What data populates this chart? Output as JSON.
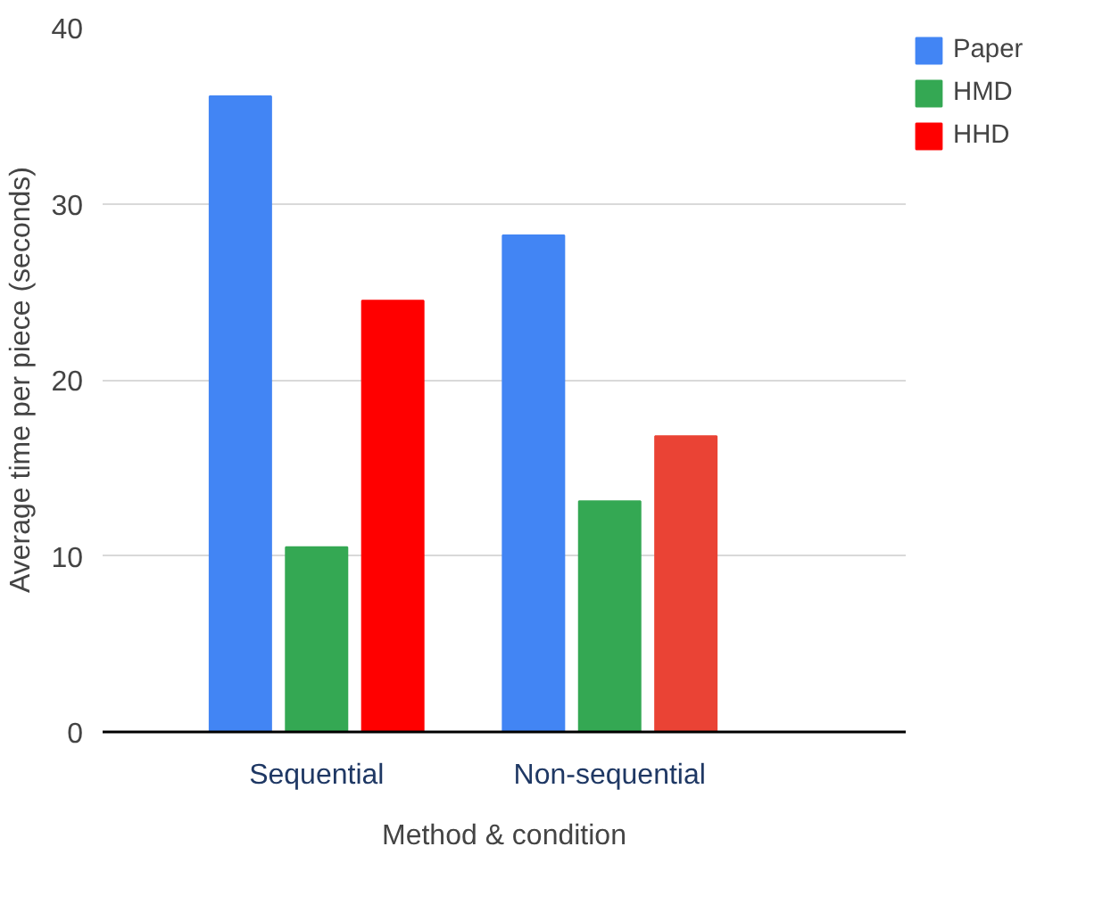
{
  "chart_data": {
    "type": "bar",
    "categories": [
      "Sequential",
      "Non-sequential"
    ],
    "series": [
      {
        "name": "Paper",
        "color": "#4285f4",
        "values": [
          36.1,
          28.2
        ]
      },
      {
        "name": "HMD",
        "color": "#34a853",
        "values": [
          10.5,
          13.1
        ]
      },
      {
        "name": "HHD",
        "colors": [
          "#ff0000",
          "#ea4335"
        ],
        "values": [
          24.5,
          16.8
        ]
      }
    ],
    "xlabel": "Method & condition",
    "ylabel": "Average time per piece (seconds)",
    "ylim": [
      0,
      40
    ],
    "yticks": [
      0,
      10,
      20,
      30,
      40
    ],
    "grid": "y",
    "legend": "top right"
  }
}
